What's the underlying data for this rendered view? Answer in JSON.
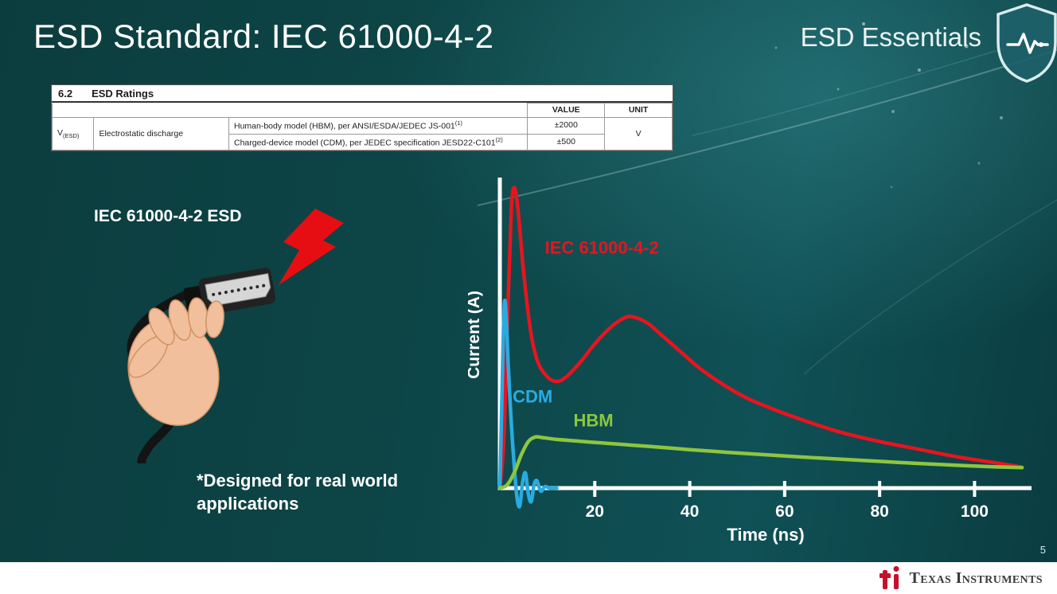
{
  "slide": {
    "title": "ESD Standard: IEC 61000-4-2",
    "series_label": "ESD Essentials",
    "page_number": "5"
  },
  "table": {
    "section_no": "6.2",
    "section_title": "ESD Ratings",
    "col_value": "VALUE",
    "col_unit": "UNIT",
    "param_symbol_base": "V",
    "param_symbol_sub": "(ESD)",
    "param_name": "Electrostatic discharge",
    "rows": [
      {
        "desc": "Human-body model (HBM), per ANSI/ESDA/JEDEC JS-001",
        "sup": "(1)",
        "value": "±2000"
      },
      {
        "desc": "Charged-device model (CDM), per JEDEC specification JESD22-C101",
        "sup": "(2)",
        "value": "±500"
      }
    ],
    "unit": "V"
  },
  "illustration": {
    "label": "IEC 61000-4-2 ESD",
    "footnote_line1": "*Designed for real world",
    "footnote_line2": "applications"
  },
  "chart_data": {
    "type": "line",
    "title": "",
    "xlabel": "Time (ns)",
    "ylabel": "Current (A)",
    "xlim": [
      0,
      112
    ],
    "ylim": [
      -0.08,
      1.02
    ],
    "xticks": [
      20,
      40,
      60,
      80,
      100
    ],
    "grid": false,
    "legend_position": "inline-labels",
    "series": [
      {
        "name": "IEC 61000-4-2",
        "color": "#e8141e",
        "points": [
          [
            0,
            0
          ],
          [
            0.8,
            0.15
          ],
          [
            1.6,
            0.55
          ],
          [
            2.4,
            0.92
          ],
          [
            3,
            1.0
          ],
          [
            3.8,
            0.93
          ],
          [
            5,
            0.72
          ],
          [
            6.5,
            0.52
          ],
          [
            8,
            0.42
          ],
          [
            10,
            0.37
          ],
          [
            12,
            0.355
          ],
          [
            14,
            0.37
          ],
          [
            17,
            0.42
          ],
          [
            20,
            0.48
          ],
          [
            23,
            0.53
          ],
          [
            26,
            0.565
          ],
          [
            28,
            0.57
          ],
          [
            31,
            0.55
          ],
          [
            34,
            0.51
          ],
          [
            38,
            0.455
          ],
          [
            42,
            0.4
          ],
          [
            47,
            0.345
          ],
          [
            52,
            0.3
          ],
          [
            58,
            0.26
          ],
          [
            65,
            0.22
          ],
          [
            72,
            0.185
          ],
          [
            80,
            0.155
          ],
          [
            88,
            0.13
          ],
          [
            96,
            0.105
          ],
          [
            104,
            0.085
          ],
          [
            110,
            0.07
          ]
        ]
      },
      {
        "name": "CDM",
        "color": "#29abe2",
        "points": [
          [
            0,
            0
          ],
          [
            0.4,
            0.28
          ],
          [
            0.9,
            0.6
          ],
          [
            1.3,
            0.58
          ],
          [
            1.8,
            0.4
          ],
          [
            2.4,
            0.22
          ],
          [
            3,
            0.08
          ],
          [
            3.6,
            -0.03
          ],
          [
            4.2,
            -0.06
          ],
          [
            4.8,
            0.02
          ],
          [
            5.4,
            0.05
          ],
          [
            6,
            -0.02
          ],
          [
            6.6,
            -0.045
          ],
          [
            7.2,
            0.01
          ],
          [
            7.8,
            0.025
          ],
          [
            8.6,
            -0.01
          ],
          [
            9.5,
            0.005
          ],
          [
            10.5,
            0
          ],
          [
            12,
            0
          ]
        ]
      },
      {
        "name": "HBM",
        "color": "#8dc63f",
        "points": [
          [
            0,
            0
          ],
          [
            1.5,
            0.01
          ],
          [
            3,
            0.05
          ],
          [
            4.5,
            0.11
          ],
          [
            6,
            0.155
          ],
          [
            7.5,
            0.17
          ],
          [
            9,
            0.168
          ],
          [
            12,
            0.162
          ],
          [
            16,
            0.157
          ],
          [
            20,
            0.152
          ],
          [
            26,
            0.145
          ],
          [
            32,
            0.138
          ],
          [
            40,
            0.128
          ],
          [
            48,
            0.119
          ],
          [
            56,
            0.111
          ],
          [
            64,
            0.103
          ],
          [
            72,
            0.096
          ],
          [
            80,
            0.089
          ],
          [
            88,
            0.082
          ],
          [
            96,
            0.076
          ],
          [
            104,
            0.071
          ],
          [
            110,
            0.068
          ]
        ]
      }
    ],
    "annotations": [
      {
        "text": "IEC 61000-4-2",
        "color": "#e8141e",
        "x": 9.5,
        "y": 0.78
      },
      {
        "text": "CDM",
        "color": "#29abe2",
        "x": 2.7,
        "y": 0.285
      },
      {
        "text": "HBM",
        "color": "#8dc63f",
        "x": 15.5,
        "y": 0.205
      }
    ]
  },
  "footer": {
    "brand": "Texas Instruments"
  },
  "colors": {
    "accent_red": "#e8141e",
    "cdm_blue": "#29abe2",
    "hbm_green": "#8dc63f",
    "background_teal": "#0d4347"
  }
}
